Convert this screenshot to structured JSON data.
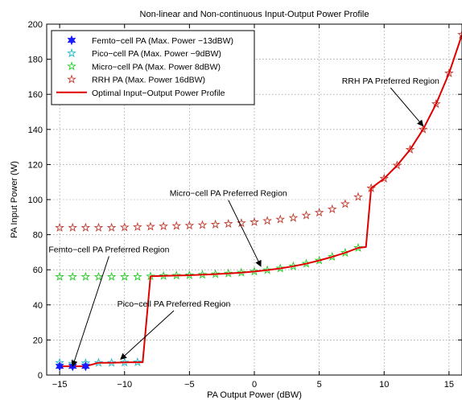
{
  "chart_data": {
    "type": "scatter",
    "title": "Non-linear and Non-continuous Input-Output Power Profile",
    "xlabel": "PA Output Power (dBW)",
    "ylabel": "PA Input Power (W)",
    "xlim": [
      -16,
      16
    ],
    "ylim": [
      0,
      200
    ],
    "xticks": [
      -15,
      -10,
      -5,
      0,
      5,
      10,
      15
    ],
    "yticks": [
      0,
      20,
      40,
      60,
      80,
      100,
      120,
      140,
      160,
      180,
      200
    ],
    "grid": true,
    "legend_position": "top-left",
    "series": [
      {
        "name": "Femto−cell PA (Max. Power −13dBW)",
        "marker": "star6-filled",
        "color": "#1a1aff",
        "x": [
          -15,
          -14,
          -13
        ],
        "y": [
          5,
          5,
          5
        ]
      },
      {
        "name": "Pico−cell PA (Max. Power −9dBW)",
        "marker": "star5",
        "color": "#1fb6c8",
        "x": [
          -15,
          -14,
          -13,
          -12,
          -11,
          -10,
          -9
        ],
        "y": [
          7,
          6.5,
          6.8,
          7,
          7,
          7.2,
          7.3
        ]
      },
      {
        "name": "Micro−cell PA (Max. Power 8dBW)",
        "marker": "star5",
        "color": "#22cc22",
        "x": [
          -15,
          -14,
          -13,
          -12,
          -11,
          -10,
          -9,
          -8,
          -7,
          -6,
          -5,
          -4,
          -3,
          -2,
          -1,
          0,
          1,
          2,
          3,
          4,
          5,
          6,
          7,
          8
        ],
        "y": [
          56,
          56,
          56,
          56,
          56,
          56,
          56,
          56.3,
          56.5,
          56.7,
          56.9,
          57.2,
          57.5,
          57.9,
          58.4,
          59,
          59.8,
          60.8,
          62,
          63.5,
          65.3,
          67.4,
          69.7,
          72.5
        ]
      },
      {
        "name": "RRH PA (Max. Power 16dBW)",
        "marker": "star5",
        "color": "#c0392b",
        "x": [
          -15,
          -14,
          -13,
          -12,
          -11,
          -10,
          -9,
          -8,
          -7,
          -6,
          -5,
          -4,
          -3,
          -2,
          -1,
          0,
          1,
          2,
          3,
          4,
          5,
          6,
          7,
          8,
          9,
          10,
          11,
          12,
          13,
          14,
          15,
          16
        ],
        "y": [
          84,
          84,
          84,
          84,
          84,
          84.2,
          84.4,
          84.6,
          84.8,
          85,
          85.2,
          85.5,
          85.8,
          86.2,
          86.6,
          87.2,
          87.9,
          88.7,
          89.6,
          91,
          92.6,
          94.5,
          97.5,
          101.5,
          106.5,
          112,
          119.5,
          128.5,
          140,
          154.5,
          172,
          194
        ]
      },
      {
        "name": "Optimal Input−Output Power Profile",
        "marker": "line",
        "color": "#e00000",
        "x": [
          -15,
          -14,
          -13,
          -12,
          -11,
          -10,
          -9,
          -8.6,
          -8,
          -7,
          -6,
          -5,
          -4,
          -3,
          -2,
          -1,
          0,
          1,
          2,
          3,
          4,
          5,
          6,
          7,
          8,
          8.6,
          9,
          10,
          11,
          12,
          13,
          14,
          15,
          16
        ],
        "y": [
          5,
          5,
          5,
          7,
          7,
          7.2,
          7.3,
          7.3,
          56.3,
          56.5,
          56.7,
          56.9,
          57.2,
          57.5,
          57.9,
          58.4,
          59,
          59.8,
          60.8,
          62,
          63.5,
          65.3,
          67.4,
          69.7,
          72.5,
          73,
          106.5,
          112,
          119.5,
          128.5,
          140,
          154.5,
          172,
          194
        ]
      }
    ],
    "annotations": [
      {
        "text": "RRH PA Preferred Region",
        "anchor_x": 13,
        "anchor_y": 142,
        "label_x": 10.5,
        "label_y": 166
      },
      {
        "text": "Micro−cell PA Preferred Region",
        "anchor_x": 0.5,
        "anchor_y": 62,
        "label_x": -2,
        "label_y": 102
      },
      {
        "text": "Femto−cell PA Preferred Region",
        "anchor_x": -14,
        "anchor_y": 5,
        "label_x": -11.2,
        "label_y": 70
      },
      {
        "text": "Pico−cell PA Preferred Region",
        "anchor_x": -10.3,
        "anchor_y": 9,
        "label_x": -6.2,
        "label_y": 39
      }
    ]
  }
}
